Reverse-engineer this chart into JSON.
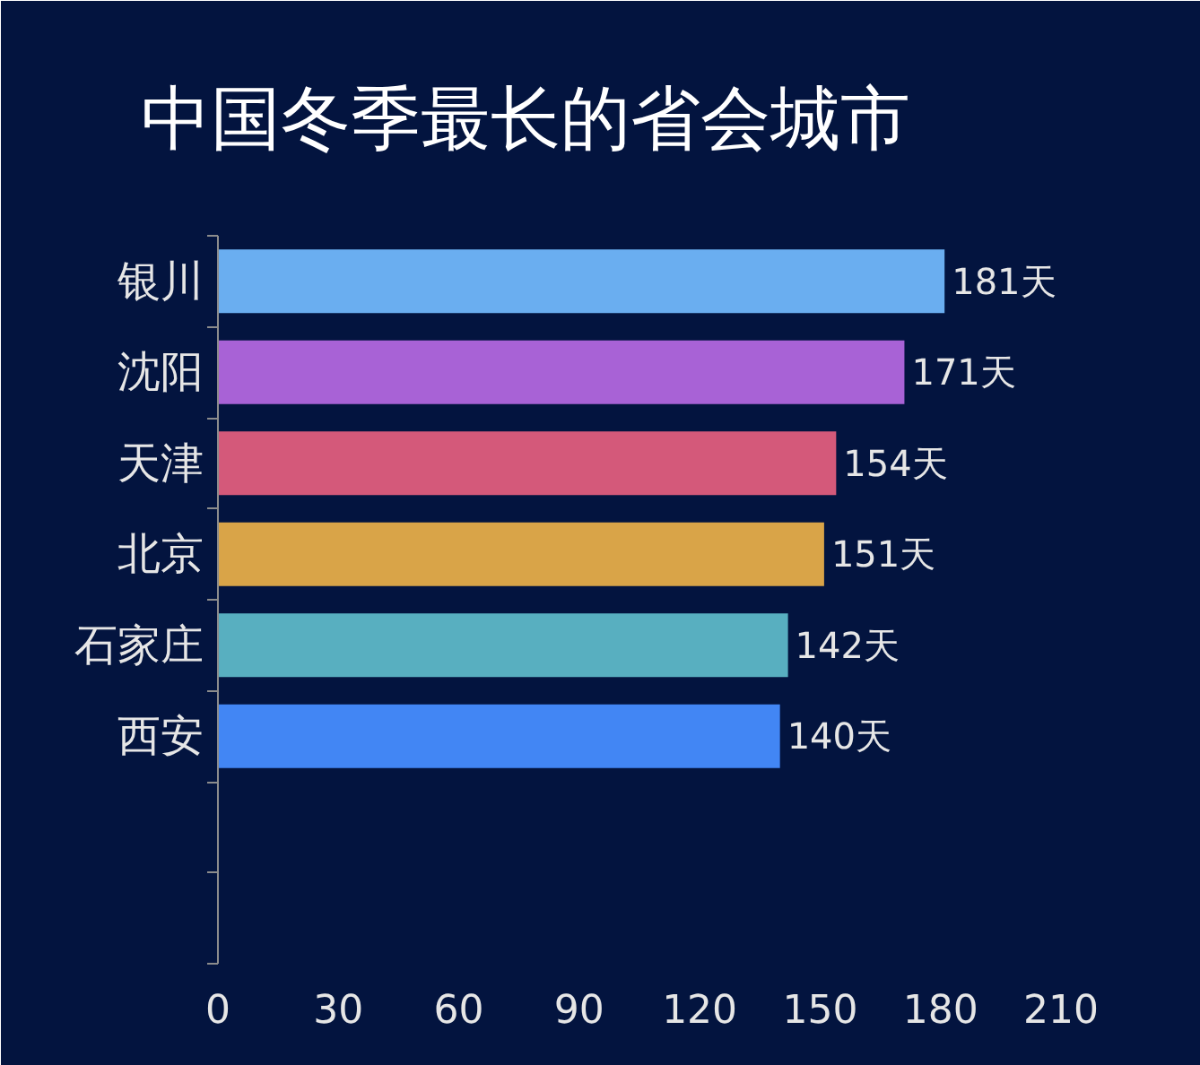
{
  "chart_data": {
    "type": "bar",
    "orientation": "horizontal",
    "title": "中国冬季最长的省会城市",
    "categories": [
      "银川",
      "沈阳",
      "天津",
      "北京",
      "石家庄",
      "西安",
      null,
      null
    ],
    "values": [
      181,
      171,
      154,
      151,
      142,
      140,
      null,
      null
    ],
    "value_labels": [
      "181天",
      "171天",
      "154天",
      "151天",
      "142天",
      "140天",
      null,
      null
    ],
    "colors": [
      "#6aaef0",
      "#a862d6",
      "#d4597a",
      "#d9a448",
      "#58afc0",
      "#4286f4",
      null,
      null
    ],
    "xlim": [
      0,
      210
    ],
    "xticks": [
      0,
      30,
      60,
      90,
      120,
      150,
      180,
      210
    ]
  }
}
